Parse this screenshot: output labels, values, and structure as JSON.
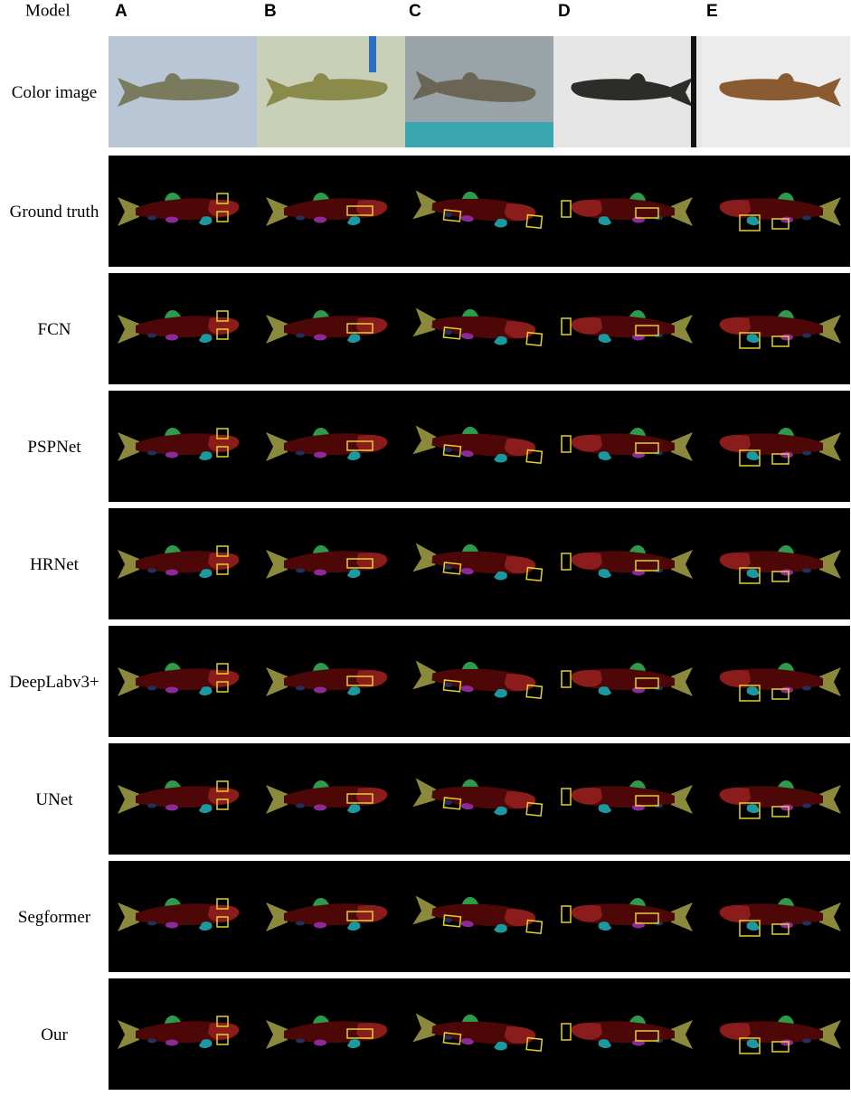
{
  "header": {
    "model": "Model",
    "columns": [
      "A",
      "B",
      "C",
      "D",
      "E"
    ]
  },
  "rows": [
    "Color image",
    "Ground truth",
    "FCN",
    "PSPNet",
    "HRNet",
    "DeepLabv3+",
    "UNet",
    "Segformer",
    "Our"
  ]
}
